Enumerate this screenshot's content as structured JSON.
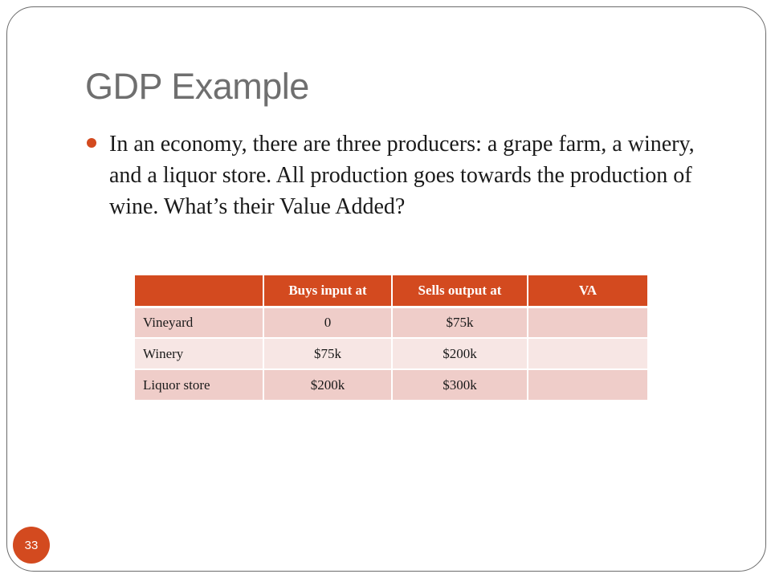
{
  "slide": {
    "title": "GDP Example",
    "bullet": "In an economy, there are three producers: a grape farm, a winery, and a liquor store. All production goes towards the production of wine. What’s their Value Added?",
    "page_number": "33"
  },
  "table": {
    "headers": [
      "",
      "Buys input at",
      "Sells output at",
      "VA"
    ],
    "rows": [
      [
        "Vineyard",
        "0",
        "$75k",
        ""
      ],
      [
        "Winery",
        "$75k",
        "$200k",
        ""
      ],
      [
        "Liquor store",
        "$200k",
        "$300k",
        ""
      ]
    ]
  },
  "colors": {
    "accent": "#d34a1f",
    "title_gray": "#6f6f6f",
    "row_odd": "#efcdc9",
    "row_even": "#f7e6e4"
  }
}
